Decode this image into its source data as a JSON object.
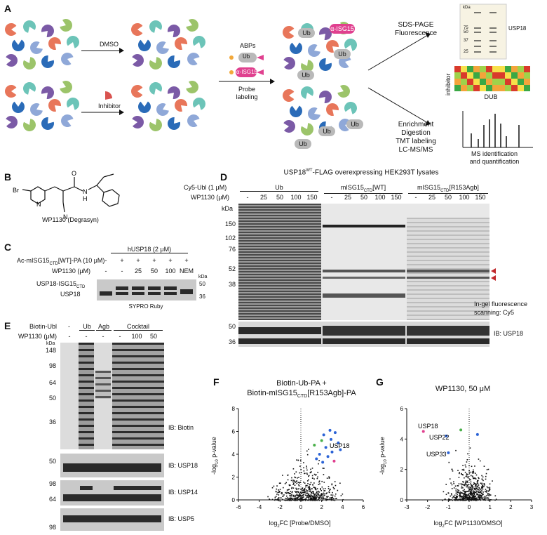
{
  "panels": {
    "A": "A",
    "B": "B",
    "C": "C",
    "D": "D",
    "E": "E",
    "F": "F",
    "G": "G"
  },
  "panelA": {
    "dmso": "DMSO",
    "inhibitor": "Inhibitor",
    "abps": "ABPs",
    "ub": "Ub",
    "isg15": "α-ISG15",
    "probe_labeling_1": "Probe",
    "probe_labeling_2": "labeling",
    "sds_1": "SDS-PAGE",
    "sds_2": "Fluorescence",
    "enrich_1": "Enrichment",
    "enrich_2": "Digestion",
    "enrich_3": "TMT labeling",
    "enrich_4": "LC-MS/MS",
    "kda": "kDa",
    "gel_mw": [
      "75",
      "50",
      "37",
      "25"
    ],
    "usp18": "USP18",
    "inhibitor_axis": "inhibitor",
    "dub_axis": "DUB",
    "ms_1": "MS identification",
    "ms_2": "and quantification",
    "heatmap_colors": [
      "#d93a2b",
      "#f3a43b",
      "#f7e04b",
      "#9fd24a",
      "#3aa845"
    ]
  },
  "panelB": {
    "caption": "WP1130 (Degrasyn)",
    "atoms": {
      "br": "Br",
      "n1": "N",
      "cn": "N",
      "nh": "N",
      "h": "H",
      "o": "O"
    }
  },
  "panelC": {
    "title": "hUSP18 (2 μM)",
    "row1_label": "Ac-mISG15",
    "row1_sub": "CTD",
    "row1_rest": "[WT]-PA (10 μM)",
    "row2_label": "WP1130 (μM)",
    "row1_values": [
      "-",
      "+",
      "+",
      "+",
      "+",
      "+"
    ],
    "row2_values": [
      "-",
      "-",
      "25",
      "50",
      "100",
      "NEM"
    ],
    "kda": "kDa",
    "band_label_1": "USP18-ISG15",
    "band_label_1_sub": "CTD",
    "band_label_2": "USP18",
    "mw": [
      "50",
      "36"
    ],
    "stain": "SYPRO Ruby"
  },
  "panelD": {
    "title_pre": "USP18",
    "title_sup": "WT",
    "title_post": "-FLAG overexpressing HEK293T lysates",
    "row1_label": "Cy5-Ubl (1 μM)",
    "row2_label": "WP1130 (μM)",
    "groups": [
      "Ub",
      "mISG15",
      "mISG15"
    ],
    "group_subs": [
      "",
      "CTD",
      "CTD"
    ],
    "group_suffix": [
      "",
      "[WT]",
      "[R153Agb]"
    ],
    "conc": [
      "-",
      "25",
      "50",
      "100",
      "150"
    ],
    "kda": "kDa",
    "mw": [
      "150",
      "102",
      "76",
      "52",
      "38"
    ],
    "scan_1": "In-gel fluorescence",
    "scan_2": "scanning: Cy5",
    "ib_mw": [
      "50",
      "36"
    ],
    "ib_label": "IB: USP18"
  },
  "panelE": {
    "row1_label": "Biotin-Ubl",
    "row2_label": "WP1130 (μM)",
    "groups": [
      "Ub",
      "Agb",
      "Cocktail"
    ],
    "row1_values": [
      "-"
    ],
    "row2_values": [
      "-",
      "-",
      "-",
      "-",
      "100",
      "50"
    ],
    "kda": "kDa",
    "mw_main": [
      "148",
      "98",
      "64",
      "50",
      "36"
    ],
    "ib_biotin": "IB: Biotin",
    "mw_usp18": [
      "50"
    ],
    "ib_usp18": "IB: USP18",
    "mw_usp14": [
      "98",
      "64"
    ],
    "ib_usp14": "IB: USP14",
    "mw_usp5": [
      "98"
    ],
    "ib_usp5": "IB: USP5"
  },
  "panelF": {
    "title_1": "Biotin-Ub-PA +",
    "title_2": "Biotin-mISG15",
    "title_2_sub": "CTD",
    "title_2_rest": "[R153Agb]-PA",
    "xlabel_pre": "log",
    "xlabel_sub": "2",
    "xlabel_post": "FC [Probe/DMSO]",
    "ylabel_pre": "-log",
    "ylabel_sub": "10",
    "ylabel_post": " p-value",
    "xticks": [
      "-6",
      "-4",
      "-2",
      "0",
      "2",
      "4",
      "6"
    ],
    "yticks": [
      "0",
      "2",
      "4",
      "6",
      "8"
    ],
    "annotation": "USP18"
  },
  "panelG": {
    "title": "WP1130, 50 μM",
    "xlabel_pre": "log",
    "xlabel_sub": "2",
    "xlabel_post": "FC [WP1130/DMSO]",
    "ylabel_pre": "-log",
    "ylabel_sub": "10",
    "ylabel_post": " p-value",
    "xticks": [
      "-3",
      "-2",
      "-1",
      "0",
      "1",
      "2",
      "3"
    ],
    "yticks": [
      "0",
      "2",
      "4",
      "6"
    ],
    "annotations": [
      "USP18",
      "USP22",
      "USP33"
    ]
  },
  "chart_data": [
    {
      "type": "scatter",
      "title": "Biotin-Ub-PA + Biotin-mISG15CTD[R153Agb]-PA",
      "xlabel": "log2FC [Probe/DMSO]",
      "ylabel": "-log10 p-value",
      "xlim": [
        -6,
        6
      ],
      "ylim": [
        0,
        8
      ],
      "highlighted": [
        {
          "label": "USP18",
          "x": 3.2,
          "y": 3.4,
          "color": "#e0408f"
        },
        {
          "x": 2.2,
          "y": 5.7,
          "color": "#2b63d6"
        },
        {
          "x": 2.9,
          "y": 5.3,
          "color": "#2b63d6"
        },
        {
          "x": 3.6,
          "y": 5.0,
          "color": "#2b63d6"
        },
        {
          "x": 2.4,
          "y": 4.6,
          "color": "#2b63d6"
        },
        {
          "x": 3.0,
          "y": 4.2,
          "color": "#2b63d6"
        },
        {
          "x": 1.8,
          "y": 4.0,
          "color": "#2b63d6"
        },
        {
          "x": 2.6,
          "y": 3.8,
          "color": "#2b63d6"
        },
        {
          "x": 3.8,
          "y": 4.4,
          "color": "#2b63d6"
        },
        {
          "x": 2.1,
          "y": 3.3,
          "color": "#2b63d6"
        },
        {
          "x": 1.5,
          "y": 3.6,
          "color": "#2b63d6"
        },
        {
          "x": 2.8,
          "y": 6.1,
          "color": "#2b63d6"
        },
        {
          "x": 3.3,
          "y": 5.9,
          "color": "#2b63d6"
        },
        {
          "x": 1.3,
          "y": 4.8,
          "color": "#4ab04a"
        },
        {
          "x": 2.0,
          "y": 5.2,
          "color": "#4ab04a"
        }
      ]
    },
    {
      "type": "scatter",
      "title": "WP1130, 50 μM",
      "xlabel": "log2FC [WP1130/DMSO]",
      "ylabel": "-log10 p-value",
      "xlim": [
        -3,
        3
      ],
      "ylim": [
        0,
        6
      ],
      "highlighted": [
        {
          "label": "USP18",
          "x": -2.2,
          "y": 4.5,
          "color": "#e0408f"
        },
        {
          "label": "USP22",
          "x": -1.1,
          "y": 4.2,
          "color": "#2b63d6"
        },
        {
          "label": "USP33",
          "x": -1.0,
          "y": 3.1,
          "color": "#2b63d6"
        },
        {
          "x": -0.4,
          "y": 4.6,
          "color": "#4ab04a"
        },
        {
          "x": 0.4,
          "y": 4.3,
          "color": "#2b63d6"
        }
      ]
    }
  ]
}
